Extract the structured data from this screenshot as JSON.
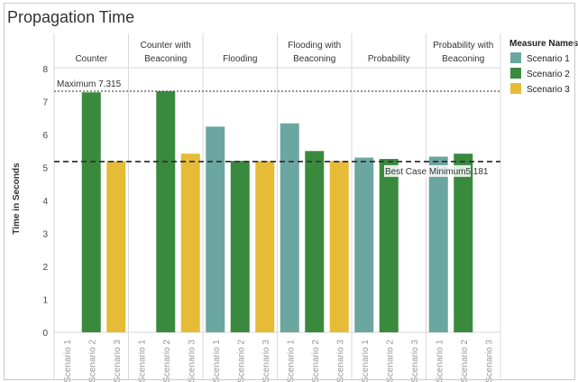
{
  "chart_data": {
    "type": "bar",
    "title": "Propagation Time",
    "ylabel": "Time in Seconds",
    "xlabel": "",
    "ylim": [
      0,
      8
    ],
    "yticks": [
      0,
      1,
      2,
      3,
      4,
      5,
      6,
      7,
      8
    ],
    "grid": false,
    "legend_placement": "right",
    "legend_title": "Measure Names",
    "panels": [
      {
        "label": "Counter",
        "values": [
          null,
          7.28,
          5.2
        ]
      },
      {
        "label": "Counter with\nBeaconing",
        "values": [
          null,
          7.315,
          5.42
        ]
      },
      {
        "label": "Flooding",
        "values": [
          6.24,
          5.2,
          5.2
        ]
      },
      {
        "label": "Flooding with\nBeaconing",
        "values": [
          6.34,
          5.5,
          5.2
        ]
      },
      {
        "label": "Probability",
        "values": [
          5.3,
          5.26,
          null
        ]
      },
      {
        "label": "Probability with\nBeaconing",
        "values": [
          5.33,
          5.42,
          null
        ]
      }
    ],
    "series": [
      {
        "name": "Scenario 1",
        "color": "#6ba6a0"
      },
      {
        "name": "Scenario 2",
        "color": "#3a8a3e"
      },
      {
        "name": "Scenario 3",
        "color": "#e6bb36"
      }
    ],
    "x_tick_labels": [
      "Scenario 1",
      "Scenario 2",
      "Scenario 3"
    ],
    "reference_lines": [
      {
        "label": "Maximum 7.315",
        "value": 7.315,
        "style": "dotted"
      },
      {
        "label": "Best Case Minimum5.181",
        "value": 5.181,
        "style": "dashed"
      }
    ]
  }
}
